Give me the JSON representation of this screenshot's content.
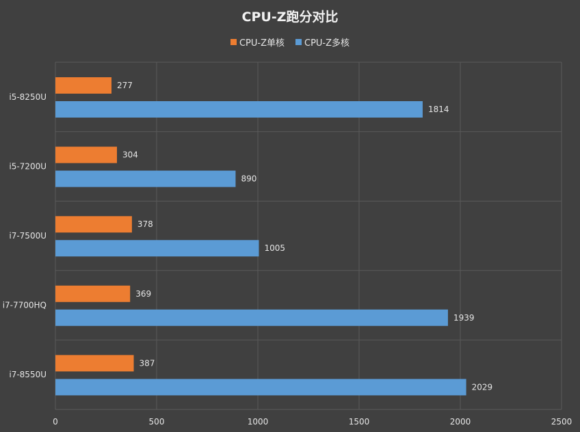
{
  "chart_data": {
    "type": "bar",
    "orientation": "horizontal",
    "title": "CPU-Z跑分对比",
    "xlabel": "",
    "ylabel": "",
    "xlim": [
      0,
      2500
    ],
    "xticks": [
      0,
      500,
      1000,
      1500,
      2000,
      2500
    ],
    "grid": true,
    "legend_position": "top",
    "categories": [
      "i5-8250U",
      "i5-7200U",
      "i7-7500U",
      "i7-7700HQ",
      "i7-8550U"
    ],
    "series": [
      {
        "name": "CPU-Z单核",
        "color": "#ed7d31",
        "values": [
          277,
          304,
          378,
          369,
          387
        ]
      },
      {
        "name": "CPU-Z多核",
        "color": "#5b9bd5",
        "values": [
          1814,
          890,
          1005,
          1939,
          2029
        ]
      }
    ]
  }
}
